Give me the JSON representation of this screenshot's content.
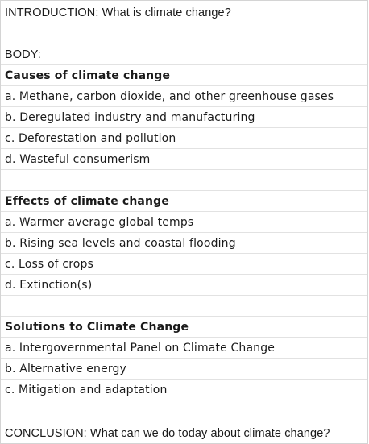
{
  "outline": {
    "introduction": "INTRODUCTION: What is climate change?",
    "body_label": "BODY:",
    "causes": {
      "heading": "Causes of climate change",
      "items": [
        "a. Methane, carbon dioxide, and other greenhouse gases",
        "b. Deregulated industry and manufacturing",
        "c. Deforestation and pollution",
        "d. Wasteful consumerism"
      ]
    },
    "effects": {
      "heading": "Effects of climate change",
      "items": [
        "a. Warmer average global temps",
        "b. Rising sea levels and coastal flooding",
        "c. Loss of crops",
        "d. Extinction(s)"
      ]
    },
    "solutions": {
      "heading": "Solutions to Climate Change",
      "items": [
        "a. Intergovernmental Panel on Climate Change",
        "b. Alternative energy",
        "c. Mitigation and adaptation"
      ]
    },
    "conclusion": "CONCLUSION: What can we do today about climate change?"
  }
}
